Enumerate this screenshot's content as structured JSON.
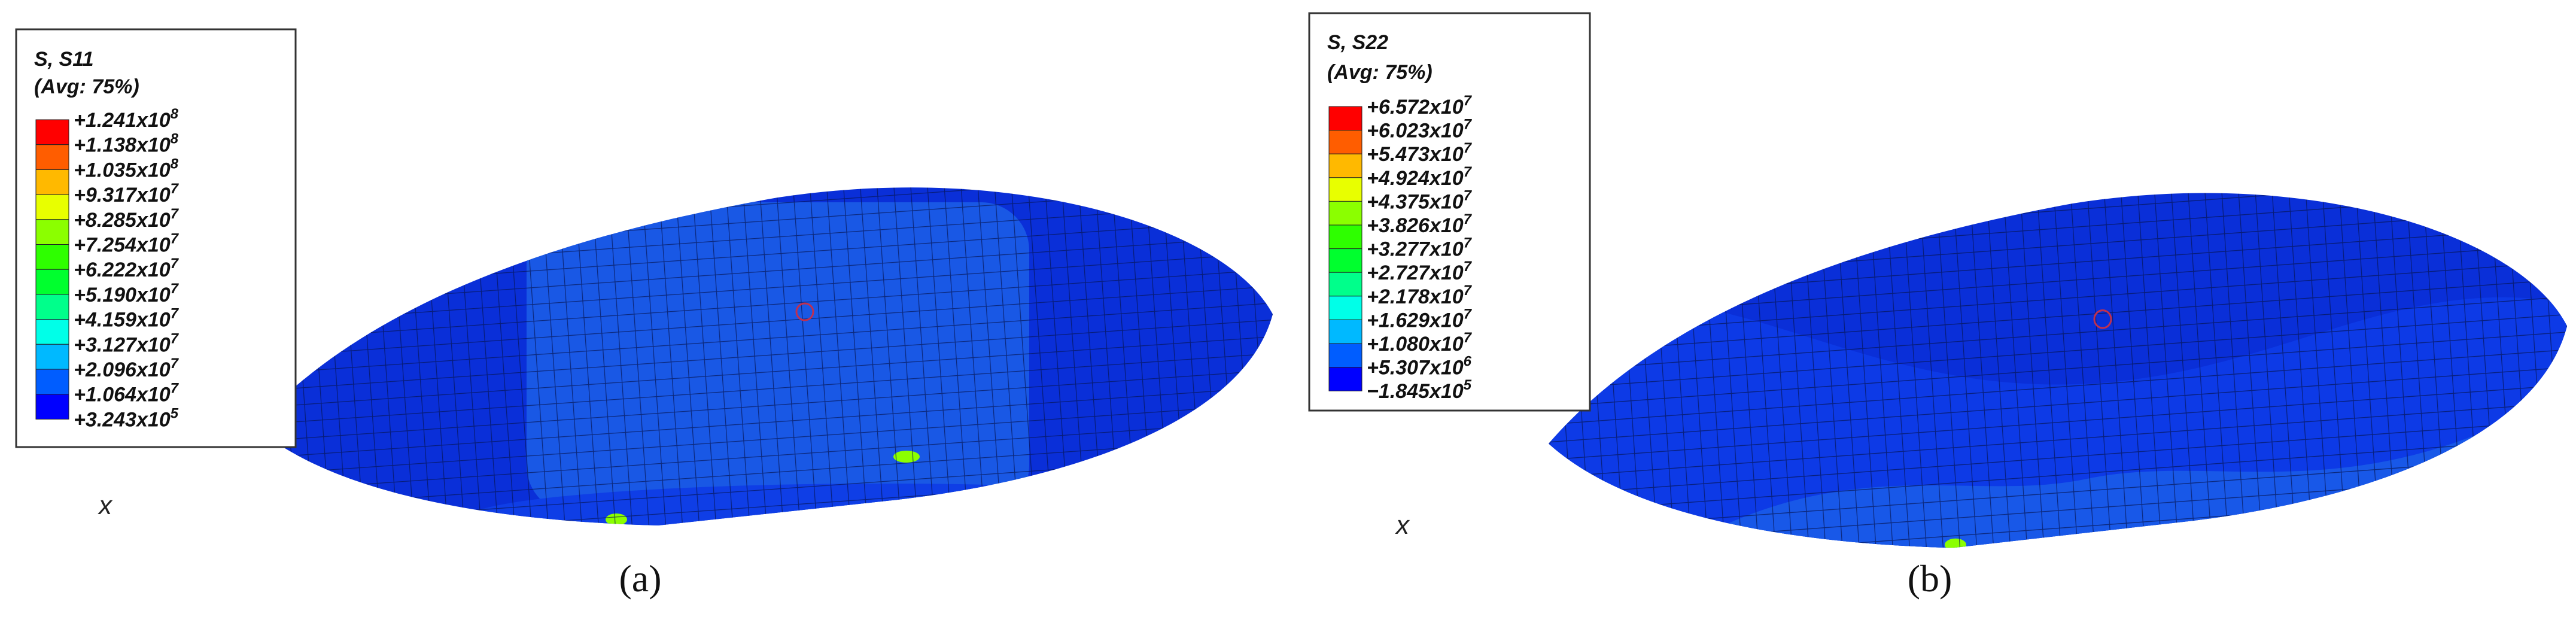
{
  "panels": [
    {
      "legend": {
        "title": "S, S11",
        "subtitle": "(Avg: 75%)",
        "labels": [
          {
            "base": "+1.241x10",
            "exp": "8"
          },
          {
            "base": "+1.138x10",
            "exp": "8"
          },
          {
            "base": "+1.035x10",
            "exp": "8"
          },
          {
            "base": "+9.317x10",
            "exp": "7"
          },
          {
            "base": "+8.285x10",
            "exp": "7"
          },
          {
            "base": "+7.254x10",
            "exp": "7"
          },
          {
            "base": "+6.222x10",
            "exp": "7"
          },
          {
            "base": "+5.190x10",
            "exp": "7"
          },
          {
            "base": "+4.159x10",
            "exp": "7"
          },
          {
            "base": "+3.127x10",
            "exp": "7"
          },
          {
            "base": "+2.096x10",
            "exp": "7"
          },
          {
            "base": "+1.064x10",
            "exp": "7"
          },
          {
            "base": "+3.243x10",
            "exp": "5"
          }
        ],
        "colors": [
          "#ff0000",
          "#ff5d00",
          "#ffb900",
          "#e8ff00",
          "#8bff00",
          "#2eff00",
          "#00ff2e",
          "#00ff8b",
          "#00ffe8",
          "#00b9ff",
          "#005dff",
          "#0000ff"
        ]
      },
      "axis_label": "x",
      "caption": "(a)"
    },
    {
      "legend": {
        "title": "S, S22",
        "subtitle": "(Avg: 75%)",
        "labels": [
          {
            "base": "+6.572x10",
            "exp": "7"
          },
          {
            "base": "+6.023x10",
            "exp": "7"
          },
          {
            "base": "+5.473x10",
            "exp": "7"
          },
          {
            "base": "+4.924x10",
            "exp": "7"
          },
          {
            "base": "+4.375x10",
            "exp": "7"
          },
          {
            "base": "+3.826x10",
            "exp": "7"
          },
          {
            "base": "+3.277x10",
            "exp": "7"
          },
          {
            "base": "+2.727x10",
            "exp": "7"
          },
          {
            "base": "+2.178x10",
            "exp": "7"
          },
          {
            "base": "+1.629x10",
            "exp": "7"
          },
          {
            "base": "+1.080x10",
            "exp": "7"
          },
          {
            "base": "+5.307x10",
            "exp": "6"
          },
          {
            "base": "−1.845x10",
            "exp": "5"
          }
        ],
        "colors": [
          "#ff0000",
          "#ff5d00",
          "#ffb900",
          "#e8ff00",
          "#8bff00",
          "#2eff00",
          "#00ff2e",
          "#00ff8b",
          "#00ffe8",
          "#00b9ff",
          "#005dff",
          "#0000ff"
        ]
      },
      "axis_label": "x",
      "caption": "(b)"
    }
  ]
}
